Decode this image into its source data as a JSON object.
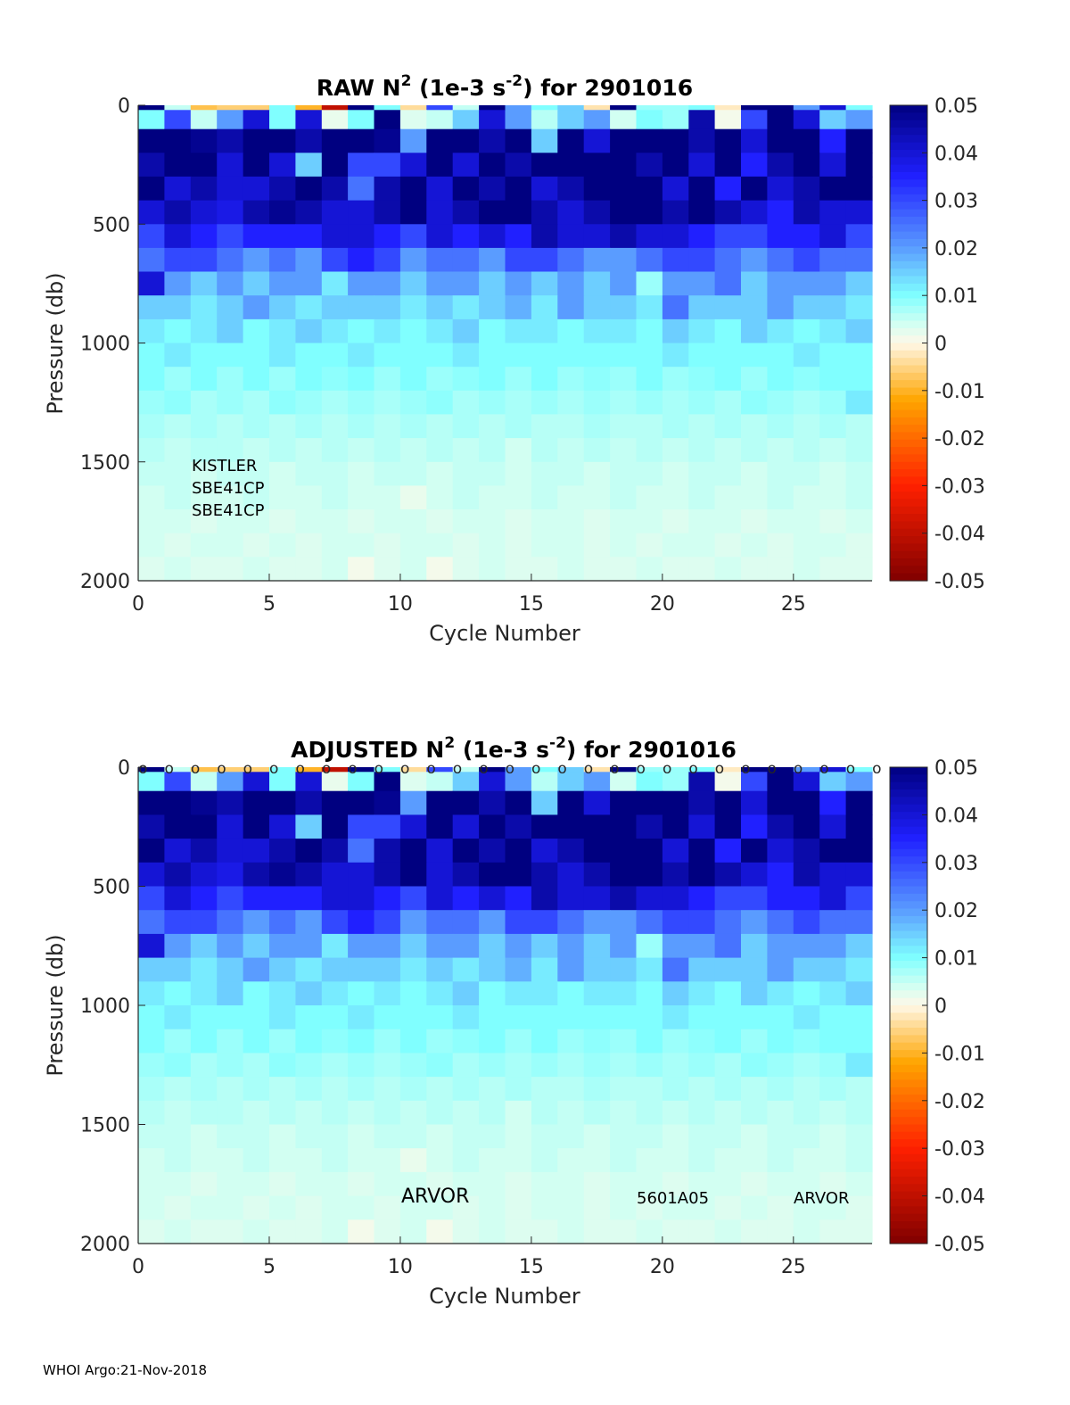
{
  "footer": "WHOI Argo:21-Nov-2018",
  "chart_data": {
    "type": "heatmap",
    "xlabel": "Cycle Number",
    "ylabel": "Pressure (db)",
    "xlim": [
      0,
      28
    ],
    "ylim": [
      2000,
      0
    ],
    "x_ticks": [
      "0",
      "5",
      "10",
      "15",
      "20",
      "25"
    ],
    "y_ticks": [
      "0",
      "500",
      "1000",
      "1500",
      "2000"
    ],
    "colorbar": {
      "clim": [
        -0.05,
        0.05
      ],
      "ticks": [
        "0.05",
        "0.04",
        "0.03",
        "0.02",
        "0.01",
        "0",
        "-0.01",
        "-0.02",
        "-0.03",
        "-0.04",
        "-0.05"
      ],
      "colors": {
        "neg_max": "#800000",
        "neg_mid": "#ff2000",
        "neg_low": "#ffa500",
        "zero": "#fff8e8",
        "pos_low": "#d2fff2",
        "pos_01": "#80ffff",
        "pos_02": "#5a9cff",
        "pos_035": "#2020ff",
        "pos_max": "#000080"
      }
    },
    "cycles": [
      1,
      2,
      3,
      4,
      5,
      6,
      7,
      8,
      9,
      10,
      11,
      12,
      13,
      14,
      15,
      16,
      17,
      18,
      19,
      20,
      21,
      22,
      23,
      24,
      25,
      26,
      27,
      28
    ],
    "pressure_edges": [
      0,
      20,
      100,
      200,
      300,
      400,
      500,
      600,
      700,
      800,
      900,
      1000,
      1100,
      1200,
      1300,
      1400,
      1500,
      1600,
      1700,
      1800,
      1900,
      2000
    ],
    "z_units": "1e-3 s^-2",
    "z": [
      [
        0.05,
        0.005,
        -0.008,
        -0.006,
        -0.006,
        0.01,
        -0.01,
        -0.04,
        0.05,
        0.01,
        -0.004,
        0.03,
        0.005,
        0.05,
        0.02,
        0.01,
        0.015,
        -0.003,
        0.05,
        0.008,
        0.008,
        0.01,
        -0.002,
        0.05,
        0.05,
        0.02,
        0.04,
        0.01
      ],
      [
        0.01,
        0.03,
        0.005,
        0.02,
        0.04,
        0.01,
        0.04,
        0.002,
        0.01,
        0.05,
        0.003,
        0.005,
        0.015,
        0.04,
        0.02,
        0.006,
        0.015,
        0.02,
        0.004,
        0.01,
        0.008,
        0.045,
        0.001,
        0.03,
        0.05,
        0.04,
        0.015,
        0.02
      ],
      [
        0.05,
        0.05,
        0.048,
        0.045,
        0.05,
        0.05,
        0.045,
        0.05,
        0.05,
        0.048,
        0.02,
        0.05,
        0.05,
        0.045,
        0.05,
        0.015,
        0.05,
        0.04,
        0.05,
        0.05,
        0.05,
        0.045,
        0.05,
        0.04,
        0.05,
        0.05,
        0.035,
        0.05
      ],
      [
        0.045,
        0.05,
        0.05,
        0.04,
        0.05,
        0.04,
        0.015,
        0.05,
        0.03,
        0.03,
        0.04,
        0.05,
        0.04,
        0.05,
        0.045,
        0.05,
        0.05,
        0.05,
        0.05,
        0.045,
        0.05,
        0.04,
        0.05,
        0.035,
        0.045,
        0.05,
        0.04,
        0.05
      ],
      [
        0.05,
        0.04,
        0.045,
        0.04,
        0.04,
        0.045,
        0.05,
        0.045,
        0.025,
        0.045,
        0.05,
        0.04,
        0.05,
        0.045,
        0.05,
        0.04,
        0.045,
        0.05,
        0.05,
        0.05,
        0.04,
        0.05,
        0.035,
        0.05,
        0.04,
        0.045,
        0.05,
        0.05
      ],
      [
        0.04,
        0.045,
        0.04,
        0.038,
        0.045,
        0.048,
        0.045,
        0.04,
        0.04,
        0.045,
        0.05,
        0.04,
        0.045,
        0.05,
        0.05,
        0.045,
        0.04,
        0.045,
        0.05,
        0.05,
        0.045,
        0.05,
        0.045,
        0.04,
        0.035,
        0.045,
        0.04,
        0.04
      ],
      [
        0.03,
        0.04,
        0.035,
        0.03,
        0.035,
        0.035,
        0.035,
        0.04,
        0.04,
        0.035,
        0.03,
        0.04,
        0.035,
        0.04,
        0.035,
        0.045,
        0.04,
        0.04,
        0.045,
        0.04,
        0.04,
        0.035,
        0.03,
        0.03,
        0.035,
        0.035,
        0.04,
        0.03
      ],
      [
        0.025,
        0.03,
        0.03,
        0.025,
        0.02,
        0.025,
        0.02,
        0.03,
        0.035,
        0.03,
        0.02,
        0.025,
        0.025,
        0.02,
        0.03,
        0.03,
        0.025,
        0.02,
        0.02,
        0.025,
        0.03,
        0.03,
        0.025,
        0.02,
        0.025,
        0.03,
        0.025,
        0.025
      ],
      [
        0.04,
        0.02,
        0.015,
        0.02,
        0.015,
        0.02,
        0.02,
        0.012,
        0.02,
        0.02,
        0.015,
        0.02,
        0.02,
        0.015,
        0.02,
        0.015,
        0.02,
        0.015,
        0.02,
        0.008,
        0.02,
        0.02,
        0.025,
        0.015,
        0.02,
        0.02,
        0.02,
        0.015
      ],
      [
        0.015,
        0.015,
        0.012,
        0.015,
        0.02,
        0.015,
        0.012,
        0.015,
        0.015,
        0.015,
        0.012,
        0.015,
        0.012,
        0.015,
        0.018,
        0.012,
        0.02,
        0.015,
        0.015,
        0.012,
        0.025,
        0.015,
        0.015,
        0.015,
        0.02,
        0.015,
        0.015,
        0.012
      ],
      [
        0.012,
        0.01,
        0.012,
        0.015,
        0.01,
        0.012,
        0.015,
        0.012,
        0.01,
        0.012,
        0.01,
        0.012,
        0.015,
        0.01,
        0.012,
        0.012,
        0.01,
        0.012,
        0.012,
        0.01,
        0.015,
        0.012,
        0.01,
        0.015,
        0.012,
        0.01,
        0.012,
        0.015
      ],
      [
        0.01,
        0.012,
        0.01,
        0.01,
        0.01,
        0.012,
        0.01,
        0.01,
        0.012,
        0.01,
        0.01,
        0.01,
        0.012,
        0.01,
        0.01,
        0.01,
        0.01,
        0.01,
        0.01,
        0.01,
        0.012,
        0.01,
        0.01,
        0.01,
        0.01,
        0.012,
        0.01,
        0.01
      ],
      [
        0.01,
        0.008,
        0.01,
        0.008,
        0.01,
        0.008,
        0.01,
        0.009,
        0.01,
        0.008,
        0.01,
        0.008,
        0.009,
        0.01,
        0.008,
        0.01,
        0.008,
        0.009,
        0.008,
        0.01,
        0.008,
        0.009,
        0.01,
        0.008,
        0.01,
        0.009,
        0.01,
        0.01
      ],
      [
        0.008,
        0.009,
        0.007,
        0.008,
        0.007,
        0.009,
        0.008,
        0.007,
        0.008,
        0.007,
        0.008,
        0.009,
        0.007,
        0.008,
        0.007,
        0.008,
        0.007,
        0.008,
        0.007,
        0.008,
        0.007,
        0.008,
        0.007,
        0.009,
        0.008,
        0.007,
        0.008,
        0.012
      ],
      [
        0.007,
        0.006,
        0.007,
        0.006,
        0.007,
        0.006,
        0.007,
        0.006,
        0.007,
        0.006,
        0.007,
        0.006,
        0.007,
        0.006,
        0.007,
        0.006,
        0.006,
        0.007,
        0.006,
        0.006,
        0.007,
        0.006,
        0.007,
        0.006,
        0.007,
        0.006,
        0.007,
        0.006
      ],
      [
        0.006,
        0.005,
        0.006,
        0.006,
        0.005,
        0.006,
        0.005,
        0.006,
        0.005,
        0.006,
        0.005,
        0.006,
        0.005,
        0.006,
        0.004,
        0.006,
        0.005,
        0.006,
        0.005,
        0.006,
        0.005,
        0.006,
        0.005,
        0.006,
        0.005,
        0.006,
        0.005,
        0.006
      ],
      [
        0.005,
        0.005,
        0.004,
        0.005,
        0.005,
        0.004,
        0.005,
        0.005,
        0.004,
        0.005,
        0.005,
        0.004,
        0.005,
        0.005,
        0.004,
        0.005,
        0.005,
        0.004,
        0.005,
        0.005,
        0.004,
        0.005,
        0.005,
        0.004,
        0.005,
        0.005,
        0.004,
        0.005
      ],
      [
        0.004,
        0.005,
        0.004,
        0.004,
        0.005,
        0.004,
        0.004,
        0.005,
        0.004,
        0.004,
        0.002,
        0.004,
        0.005,
        0.004,
        0.004,
        0.005,
        0.004,
        0.004,
        0.005,
        0.004,
        0.004,
        0.005,
        0.004,
        0.004,
        0.005,
        0.004,
        0.004,
        0.005
      ],
      [
        0.004,
        0.004,
        0.003,
        0.004,
        0.004,
        0.003,
        0.004,
        0.004,
        0.003,
        0.004,
        0.004,
        0.003,
        0.004,
        0.004,
        0.003,
        0.004,
        0.004,
        0.003,
        0.004,
        0.004,
        0.003,
        0.004,
        0.004,
        0.003,
        0.004,
        0.004,
        0.003,
        0.004
      ],
      [
        0.004,
        0.003,
        0.004,
        0.004,
        0.003,
        0.004,
        0.003,
        0.004,
        0.004,
        0.003,
        0.004,
        0.004,
        0.003,
        0.004,
        0.003,
        0.004,
        0.004,
        0.003,
        0.004,
        0.003,
        0.004,
        0.004,
        0.003,
        0.004,
        0.003,
        0.004,
        0.004,
        0.003
      ],
      [
        0.003,
        0.004,
        0.003,
        0.003,
        0.004,
        0.003,
        0.003,
        0.004,
        0.001,
        0.003,
        0.004,
        0.001,
        0.003,
        0.004,
        0.003,
        0.003,
        0.004,
        0.003,
        0.003,
        0.004,
        0.003,
        0.003,
        0.004,
        0.003,
        0.003,
        0.004,
        0.003,
        0.003
      ]
    ],
    "panels": [
      {
        "title_main": "RAW N",
        "title_sup1": "2",
        "title_mid": " (1e-3 s",
        "title_sup2": "-2",
        "title_end": ") for 2901016",
        "annotations": [
          "KISTLER",
          "SBE41CP",
          "SBE41CP"
        ],
        "qc_markers": false
      },
      {
        "title_main": "ADJUSTED N",
        "title_sup1": "2",
        "title_mid": " (1e-3 s",
        "title_sup2": "-2",
        "title_end": ") for 2901016",
        "annotations": [
          "ARVOR",
          "5601A05",
          "ARVOR"
        ],
        "qc_markers": true,
        "qc_marker_label": "o",
        "qc_marker_cycles": [
          0,
          1,
          2,
          3,
          4,
          5,
          6,
          7,
          8,
          9,
          10,
          11,
          12,
          13,
          14,
          15,
          16,
          17,
          18,
          19,
          20,
          21,
          22,
          23,
          24,
          25,
          26,
          27,
          28
        ]
      }
    ]
  }
}
